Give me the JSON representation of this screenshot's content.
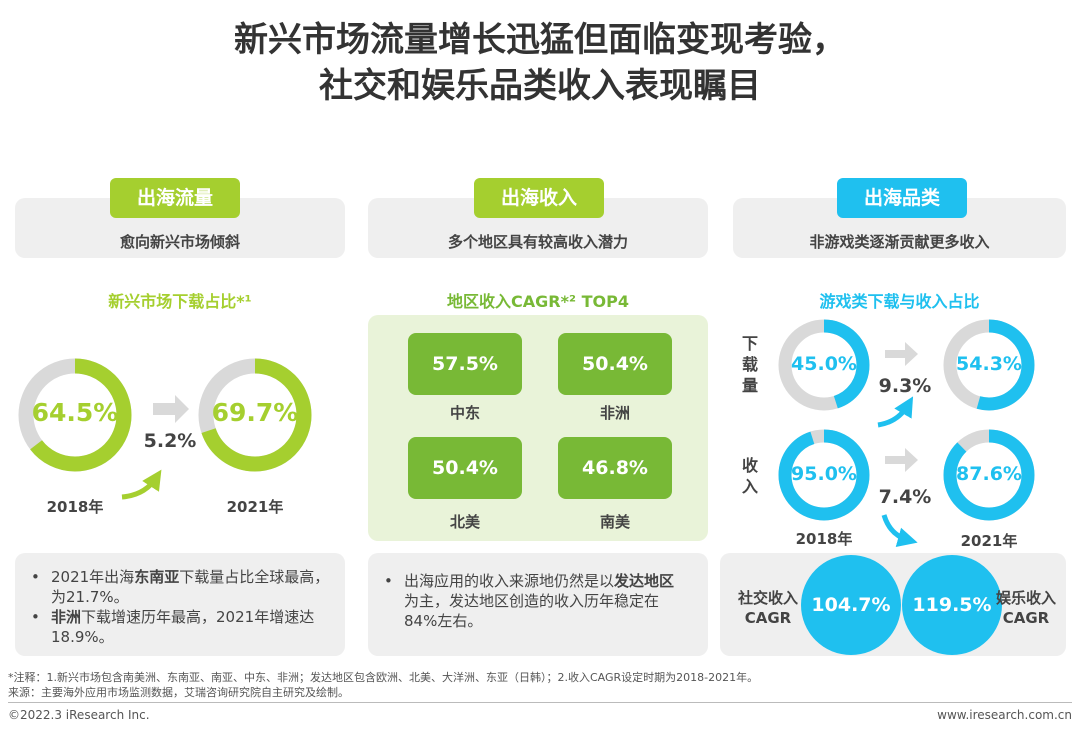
{
  "title": {
    "line1": "新兴市场流量增长迅猛但面临变现考验，",
    "line2": "社交和娱乐品类收入表现瞩目"
  },
  "colors": {
    "green": "#a5cf2f",
    "dark_green": "#78b936",
    "blue": "#1fc0ef",
    "gray": "#d9d9d9",
    "panel": "#efefef"
  },
  "columns": [
    {
      "tag": "出海流量",
      "subtitle": "愈向新兴市场倾斜",
      "section_title": "新兴市场下载占比*¹",
      "growth": "5.2%",
      "bullets": [
        {
          "pre": "2021年出海",
          "bold": "东南亚",
          "post": "下载量占比全球最高，为21.7%。"
        },
        {
          "pre": "",
          "bold": "非洲",
          "post": "下载增速历年最高，2021年增速达18.9%。"
        }
      ]
    },
    {
      "tag": "出海收入",
      "subtitle": "多个地区具有较高收入潜力",
      "section_title": "地区收入CAGR*² TOP4",
      "bullets": [
        {
          "pre": "出海应用的收入来源地仍然是以",
          "bold": "发达地区",
          "post": "为主，发达地区创造的收入历年稳定在84%左右。"
        }
      ]
    },
    {
      "tag": "出海品类",
      "subtitle": "非游戏类逐渐贡献更多收入",
      "section_title": "游戏类下载与收入占比",
      "row_labels": [
        "下载量",
        "收入"
      ],
      "growth_download": "9.3%",
      "growth_revenue": "7.4%",
      "cagr": [
        {
          "label1": "社交收入",
          "label2": "CAGR",
          "value": "104.7%"
        },
        {
          "label1": "娱乐收入",
          "label2": "CAGR",
          "value": "119.5%"
        }
      ]
    }
  ],
  "chart_data": [
    {
      "type": "pie",
      "variant": "donut",
      "title": "新兴市场下载占比*¹",
      "categories": [
        "2018年",
        "2021年"
      ],
      "values": [
        64.5,
        69.7
      ],
      "labels": [
        "64.5%",
        "69.7%"
      ],
      "color": "#a5cf2f"
    },
    {
      "type": "bar",
      "title": "地区收入CAGR*² TOP4",
      "categories": [
        "中东",
        "非洲",
        "北美",
        "南美"
      ],
      "values": [
        57.5,
        50.4,
        50.4,
        46.8
      ],
      "labels": [
        "57.5%",
        "50.4%",
        "50.4%",
        "46.8%"
      ]
    },
    {
      "type": "pie",
      "variant": "donut",
      "title": "游戏类下载与收入占比",
      "categories": [
        "2018年",
        "2021年"
      ],
      "series": [
        {
          "name": "下载量",
          "values": [
            45.0,
            54.3
          ],
          "labels": [
            "45.0%",
            "54.3%"
          ]
        },
        {
          "name": "收入",
          "values": [
            95.0,
            87.6
          ],
          "labels": [
            "95.0%",
            "87.6%"
          ]
        }
      ],
      "color": "#1fc0ef"
    }
  ],
  "notes": {
    "note": "*注释：1.新兴市场包含南美洲、东南亚、南亚、中东、非洲；发达地区包含欧洲、北美、大洋洲、东亚（日韩）；2.收入CAGR设定时期为2018-2021年。",
    "source": "来源：主要海外应用市场监测数据，艾瑞咨询研究院自主研究及绘制。"
  },
  "footer": {
    "copyright": "©2022.3 iResearch Inc.",
    "website": "www.iresearch.com.cn"
  }
}
